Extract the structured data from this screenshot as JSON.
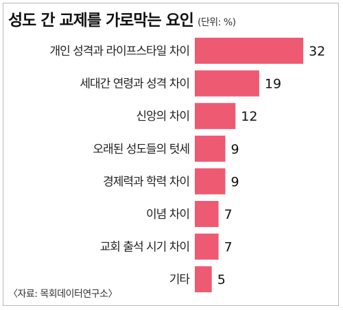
{
  "title": "성도 간 교제를 가로막는 요인",
  "unit": "(단위: %)",
  "source": "〈자료: 목회데이터연구소〉",
  "colors": {
    "bar": "#ee5a72"
  },
  "chart_data": {
    "type": "bar",
    "orientation": "horizontal",
    "title": "성도 간 교제를 가로막는 요인",
    "unit": "%",
    "categories": [
      "개인 성격과 라이프스타일 차이",
      "세대간 연령과 성격 차이",
      "신앙의 차이",
      "오래된 성도들의 텃세",
      "경제력과 학력 차이",
      "이념 차이",
      "교회 출석 시기 차이",
      "기타"
    ],
    "values": [
      32,
      19,
      12,
      9,
      9,
      7,
      7,
      5
    ],
    "grid": false,
    "legend": "none"
  }
}
